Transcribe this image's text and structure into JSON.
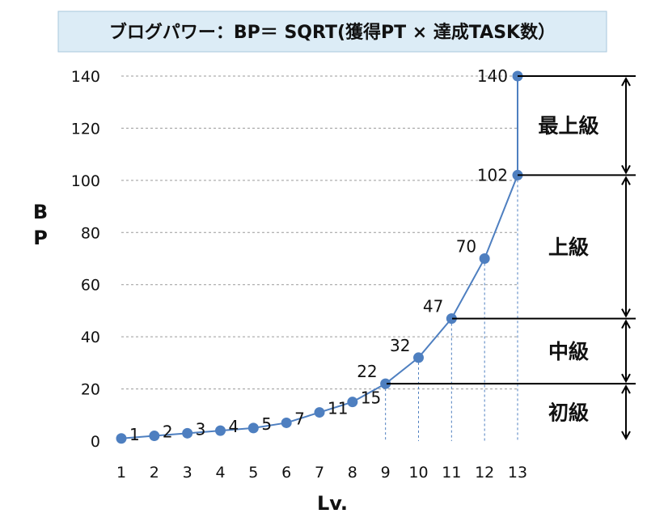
{
  "chart_data": {
    "type": "line",
    "title": "ブログパワー：BP＝ SQRT(獲得PT × 達成TASK数）",
    "xlabel": "Lv.",
    "ylabel": "BP",
    "x": [
      1,
      2,
      3,
      4,
      5,
      6,
      7,
      8,
      9,
      10,
      11,
      12,
      13,
      13
    ],
    "y": [
      1,
      2,
      3,
      4,
      5,
      7,
      11,
      15,
      22,
      32,
      47,
      70,
      102,
      140
    ],
    "data_labels": [
      "1",
      "2",
      "3",
      "4",
      "5",
      "7",
      "11",
      "15",
      "22",
      "32",
      "47",
      "70",
      "102",
      "140"
    ],
    "xticks": [
      "1",
      "2",
      "3",
      "4",
      "5",
      "6",
      "7",
      "8",
      "9",
      "10",
      "11",
      "12",
      "13"
    ],
    "yticks": [
      {
        "value": 0,
        "label": "0"
      },
      {
        "value": 20,
        "label": "20"
      },
      {
        "value": 40,
        "label": "40"
      },
      {
        "value": 60,
        "label": "60"
      },
      {
        "value": 80,
        "label": "80"
      },
      {
        "value": 100,
        "label": "100"
      },
      {
        "value": 120,
        "label": "120"
      },
      {
        "value": 140,
        "label": "140"
      }
    ],
    "xlim": [
      1,
      13
    ],
    "ylim": [
      0,
      140
    ],
    "grid": true,
    "series_color": "#4e7fc0",
    "levels": [
      {
        "label": "初級",
        "from": 0,
        "to": 22
      },
      {
        "label": "中級",
        "from": 22,
        "to": 47
      },
      {
        "label": "上級",
        "from": 47,
        "to": 102
      },
      {
        "label": "最上級",
        "from": 102,
        "to": 140
      }
    ]
  }
}
